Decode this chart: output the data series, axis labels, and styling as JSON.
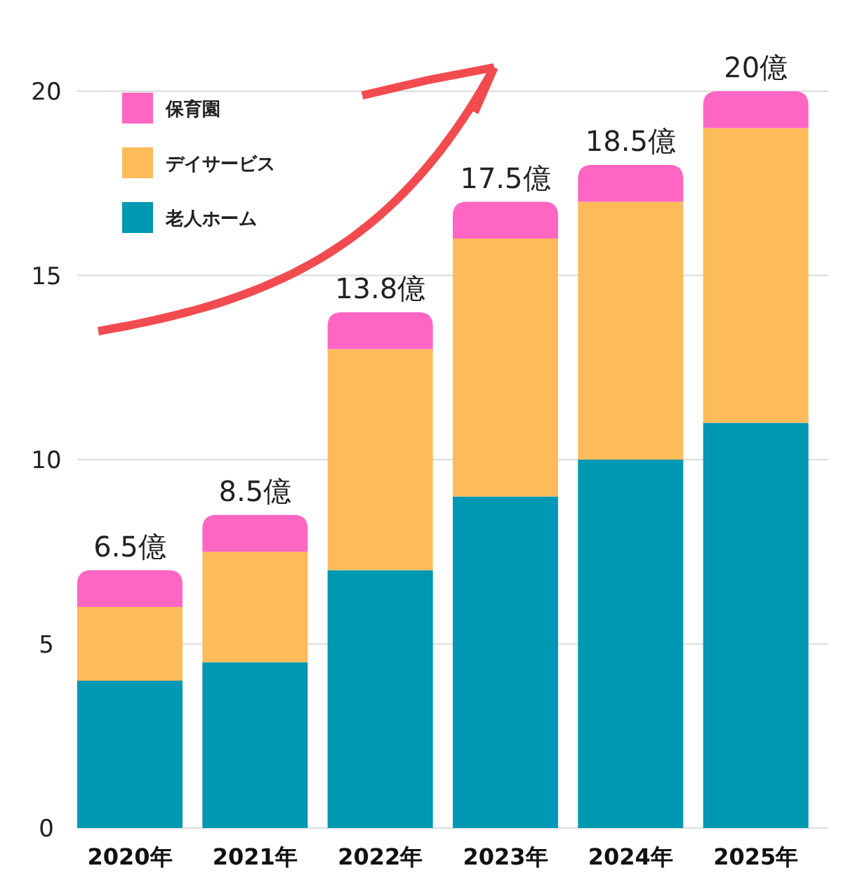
{
  "chart_data": {
    "type": "bar",
    "stacked": true,
    "categories": [
      "2020年",
      "2021年",
      "2022年",
      "2023年",
      "2024年",
      "2025年"
    ],
    "series": [
      {
        "name": "老人ホーム",
        "color": "#0098b3",
        "values": [
          4,
          4.5,
          7,
          9,
          10,
          11
        ]
      },
      {
        "name": "デイサービス",
        "color": "#fdbb5a",
        "values": [
          2,
          3,
          6,
          7,
          7,
          8
        ]
      },
      {
        "name": "保育園",
        "color": "#ff66c4",
        "values": [
          1,
          1,
          1,
          1,
          1,
          1
        ]
      }
    ],
    "annotations": [
      {
        "text": "6.5億",
        "x": "2020年",
        "y": 7
      },
      {
        "text": "8.5億",
        "x": "2021年",
        "y": 8.5
      },
      {
        "text": "13.8億",
        "x": "2022年",
        "y": 14
      },
      {
        "text": "17.5億",
        "x": "2023年",
        "y": 17
      },
      {
        "text": "18.5億",
        "x": "2024年",
        "y": 18
      },
      {
        "text": "20億",
        "x": "2025年",
        "y": 20
      }
    ],
    "ylim": [
      0,
      20
    ],
    "yticks": [
      0,
      5,
      10,
      15,
      20
    ],
    "grid": "y",
    "legend": "top left"
  }
}
